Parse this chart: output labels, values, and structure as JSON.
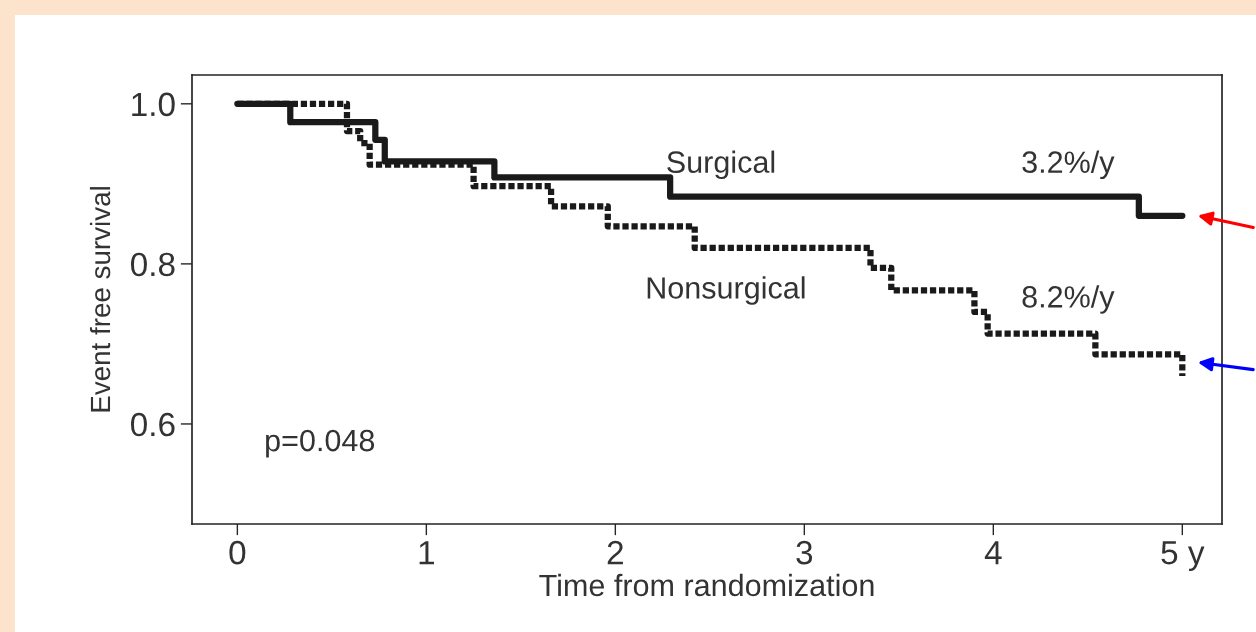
{
  "chart_data": {
    "type": "step",
    "xlabel": "Time from randomization",
    "ylabel": "Event free survival",
    "xlim": [
      -0.24,
      5.21
    ],
    "ylim": [
      0.475,
      1.036
    ],
    "xticks": [
      0,
      1,
      2,
      3,
      4,
      {
        "value": 5,
        "label": "5 y"
      }
    ],
    "yticks": [
      0.6,
      0.8,
      {
        "value": 1,
        "label": "1.0"
      }
    ],
    "grid": false,
    "legend": false,
    "series": [
      {
        "name": "Surgical",
        "color": "#1a1a1a",
        "line_style": "solid",
        "x": [
          0,
          0.28,
          0.73,
          0.78,
          1.36,
          2.29,
          4.77,
          5.0
        ],
        "values": [
          1.0,
          0.977,
          0.955,
          0.928,
          0.908,
          0.884,
          0.86,
          0.86
        ]
      },
      {
        "name": "Nonsurgical",
        "color": "#1a1a1a",
        "line_style": "dotted",
        "x": [
          0,
          0.58,
          0.65,
          0.7,
          1.25,
          1.66,
          1.96,
          2.42,
          3.35,
          3.46,
          3.9,
          3.97,
          4.54,
          5.0
        ],
        "values": [
          1.0,
          0.966,
          0.951,
          0.924,
          0.897,
          0.872,
          0.847,
          0.82,
          0.795,
          0.767,
          0.74,
          0.713,
          0.687,
          0.66
        ]
      }
    ],
    "annotations": [
      "3.2%/y",
      "8.2%/y",
      "p=0.048"
    ]
  }
}
